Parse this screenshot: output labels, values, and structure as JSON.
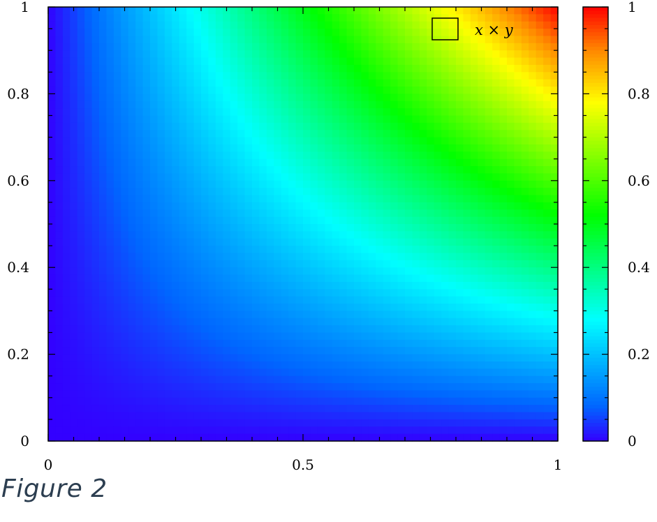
{
  "caption": "Figure 2",
  "chart_data": {
    "type": "heatmap",
    "function": "x × y",
    "legend": {
      "label": "x × y",
      "placement": "top-right"
    },
    "x": {
      "ticks": [
        0,
        0.5,
        1
      ],
      "tick_labels": [
        "0",
        "0.5",
        "1"
      ],
      "range": [
        0,
        1
      ]
    },
    "y": {
      "ticks": [
        0,
        0.2,
        0.4,
        0.6,
        0.8,
        1
      ],
      "tick_labels": [
        "0",
        "0.2",
        "0.4",
        "0.6",
        "0.8",
        "1"
      ],
      "range": [
        0,
        1
      ]
    },
    "colorbar": {
      "ticks": [
        0,
        0.2,
        0.4,
        0.6,
        0.8,
        1
      ],
      "tick_labels": [
        "0",
        "0.2",
        "0.4",
        "0.6",
        "0.8",
        "1"
      ],
      "range": [
        0,
        1
      ],
      "colormap": [
        "#3300ff",
        "#0066ff",
        "#00ffff",
        "#00ff00",
        "#ffff00",
        "#ff8800",
        "#ff0000"
      ]
    },
    "grid": false
  }
}
